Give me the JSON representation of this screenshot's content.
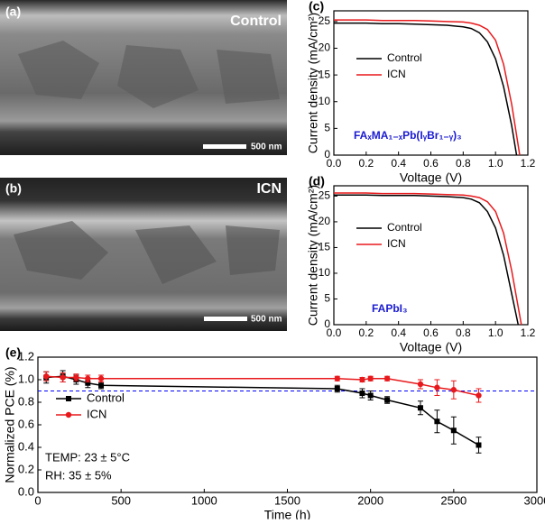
{
  "panels": [
    {
      "label": "(a)",
      "title": "Control",
      "scale": "500 nm"
    },
    {
      "label": "(b)",
      "title": "ICN",
      "scale": "500 nm"
    }
  ],
  "chart_data": [
    {
      "type": "line",
      "panel": "(c)",
      "xlabel": "Voltage (V)",
      "ylabel": "Current density (mA/cm²)",
      "annotation": "FAₓMA₁₋ₓPb(IᵧBr₁₋ᵧ)₃",
      "xlim": [
        0,
        1.2
      ],
      "xticks": [
        {
          "value": 0,
          "label": "0.0"
        },
        0.2,
        0.4,
        0.6,
        0.8,
        {
          "value": 1,
          "label": "1.0"
        },
        1.2
      ],
      "ylim": [
        0,
        27
      ],
      "yticks": [
        0,
        5,
        10,
        15,
        20,
        25
      ],
      "series": [
        {
          "name": "Control",
          "color": "#000000",
          "x": [
            0,
            0.1,
            0.2,
            0.3,
            0.4,
            0.5,
            0.6,
            0.7,
            0.8,
            0.85,
            0.9,
            0.95,
            1.0,
            1.05,
            1.1,
            1.13
          ],
          "values": [
            24.7,
            24.7,
            24.7,
            24.6,
            24.6,
            24.5,
            24.4,
            24.3,
            24.0,
            23.7,
            22.9,
            21.2,
            18.0,
            12.8,
            5.5,
            0
          ]
        },
        {
          "name": "ICN",
          "color": "#e8191c",
          "x": [
            0,
            0.1,
            0.2,
            0.3,
            0.4,
            0.5,
            0.6,
            0.7,
            0.8,
            0.85,
            0.9,
            0.95,
            1.0,
            1.05,
            1.1,
            1.15
          ],
          "values": [
            25.3,
            25.3,
            25.3,
            25.2,
            25.2,
            25.2,
            25.1,
            25.0,
            24.9,
            24.7,
            24.3,
            23.5,
            21.5,
            17.0,
            9.5,
            0
          ]
        }
      ]
    },
    {
      "type": "line",
      "panel": "(d)",
      "xlabel": "Voltage (V)",
      "ylabel": "Current density (mA/cm²)",
      "annotation": "FAPbI₃",
      "xlim": [
        0,
        1.2
      ],
      "xticks": [
        {
          "value": 0,
          "label": "0.0"
        },
        0.2,
        0.4,
        0.6,
        0.8,
        {
          "value": 1,
          "label": "1.0"
        },
        1.2
      ],
      "ylim": [
        0,
        27
      ],
      "yticks": [
        0,
        5,
        10,
        15,
        20,
        25
      ],
      "series": [
        {
          "name": "Control",
          "color": "#000000",
          "x": [
            0,
            0.1,
            0.2,
            0.3,
            0.4,
            0.5,
            0.6,
            0.7,
            0.8,
            0.85,
            0.9,
            0.95,
            1.0,
            1.05,
            1.1,
            1.14
          ],
          "values": [
            25.2,
            25.2,
            25.2,
            25.1,
            25.1,
            25.1,
            25.0,
            24.9,
            24.7,
            24.4,
            23.7,
            22.0,
            18.8,
            13.5,
            6.0,
            0
          ]
        },
        {
          "name": "ICN",
          "color": "#e8191c",
          "x": [
            0,
            0.1,
            0.2,
            0.3,
            0.4,
            0.5,
            0.6,
            0.7,
            0.8,
            0.85,
            0.9,
            0.95,
            1.0,
            1.05,
            1.1,
            1.16
          ],
          "values": [
            25.6,
            25.6,
            25.6,
            25.5,
            25.5,
            25.5,
            25.4,
            25.3,
            25.2,
            25.0,
            24.7,
            23.9,
            22.0,
            17.8,
            10.5,
            0
          ]
        }
      ]
    },
    {
      "type": "errorline",
      "panel": "(e)",
      "xlabel": "Time (h)",
      "ylabel": "Normalized PCE (%)",
      "notes": [
        "TEMP: 23 ± 5°C",
        "RH: 35 ± 5%"
      ],
      "reference_line": 0.9,
      "reference_color": "#0000ff",
      "xlim": [
        0,
        3000
      ],
      "xticks": [
        0,
        500,
        1000,
        1500,
        2000,
        2500,
        3000
      ],
      "ylim": [
        0,
        1.2
      ],
      "yticks": [
        {
          "value": 0,
          "label": "0.0"
        },
        0.2,
        0.4,
        0.6,
        0.8,
        {
          "value": 1,
          "label": "1.0"
        },
        1.2
      ],
      "series": [
        {
          "name": "Control",
          "color": "#000000",
          "marker": "square",
          "x": [
            50,
            150,
            230,
            300,
            380,
            1800,
            1950,
            2000,
            2100,
            2300,
            2400,
            2500,
            2650
          ],
          "values": [
            1.02,
            1.03,
            1.0,
            0.97,
            0.95,
            0.92,
            0.88,
            0.86,
            0.82,
            0.75,
            0.63,
            0.55,
            0.42
          ],
          "errors": [
            0.05,
            0.05,
            0.04,
            0.04,
            0.03,
            0.03,
            0.04,
            0.04,
            0.03,
            0.06,
            0.1,
            0.12,
            0.07
          ]
        },
        {
          "name": "ICN",
          "color": "#e8191c",
          "marker": "circle",
          "x": [
            50,
            150,
            230,
            300,
            380,
            1800,
            1950,
            2000,
            2100,
            2300,
            2400,
            2500,
            2650
          ],
          "values": [
            1.03,
            1.02,
            1.02,
            1.01,
            1.01,
            1.01,
            1.0,
            1.01,
            1.01,
            0.96,
            0.93,
            0.91,
            0.86
          ],
          "errors": [
            0.04,
            0.04,
            0.03,
            0.03,
            0.03,
            0.02,
            0.02,
            0.02,
            0.02,
            0.04,
            0.07,
            0.08,
            0.06
          ]
        }
      ]
    }
  ]
}
